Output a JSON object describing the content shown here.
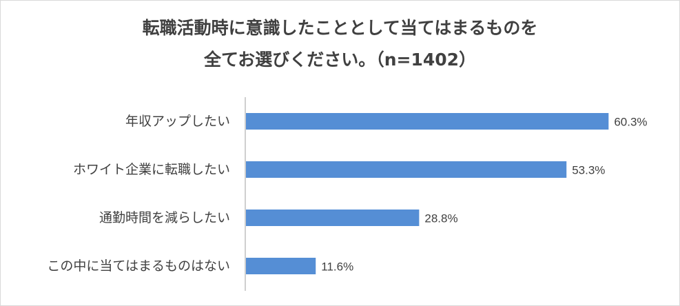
{
  "chart_data": {
    "type": "bar",
    "orientation": "horizontal",
    "title_lines": [
      "転職活動時に意識したこととして当てはまるものを",
      "全てお選びください。（n=1402）"
    ],
    "categories": [
      "年収アップしたい",
      "ホワイト企業に転職したい",
      "通勤時間を減らしたい",
      "この中に当てはまるものはない"
    ],
    "values": [
      60.3,
      53.3,
      28.8,
      11.6
    ],
    "value_labels": [
      "60.3%",
      "53.3%",
      "28.8%",
      "11.6%"
    ],
    "xlim": [
      0,
      70
    ],
    "bar_color": "#558ed5",
    "grid": false,
    "legend": "none"
  }
}
